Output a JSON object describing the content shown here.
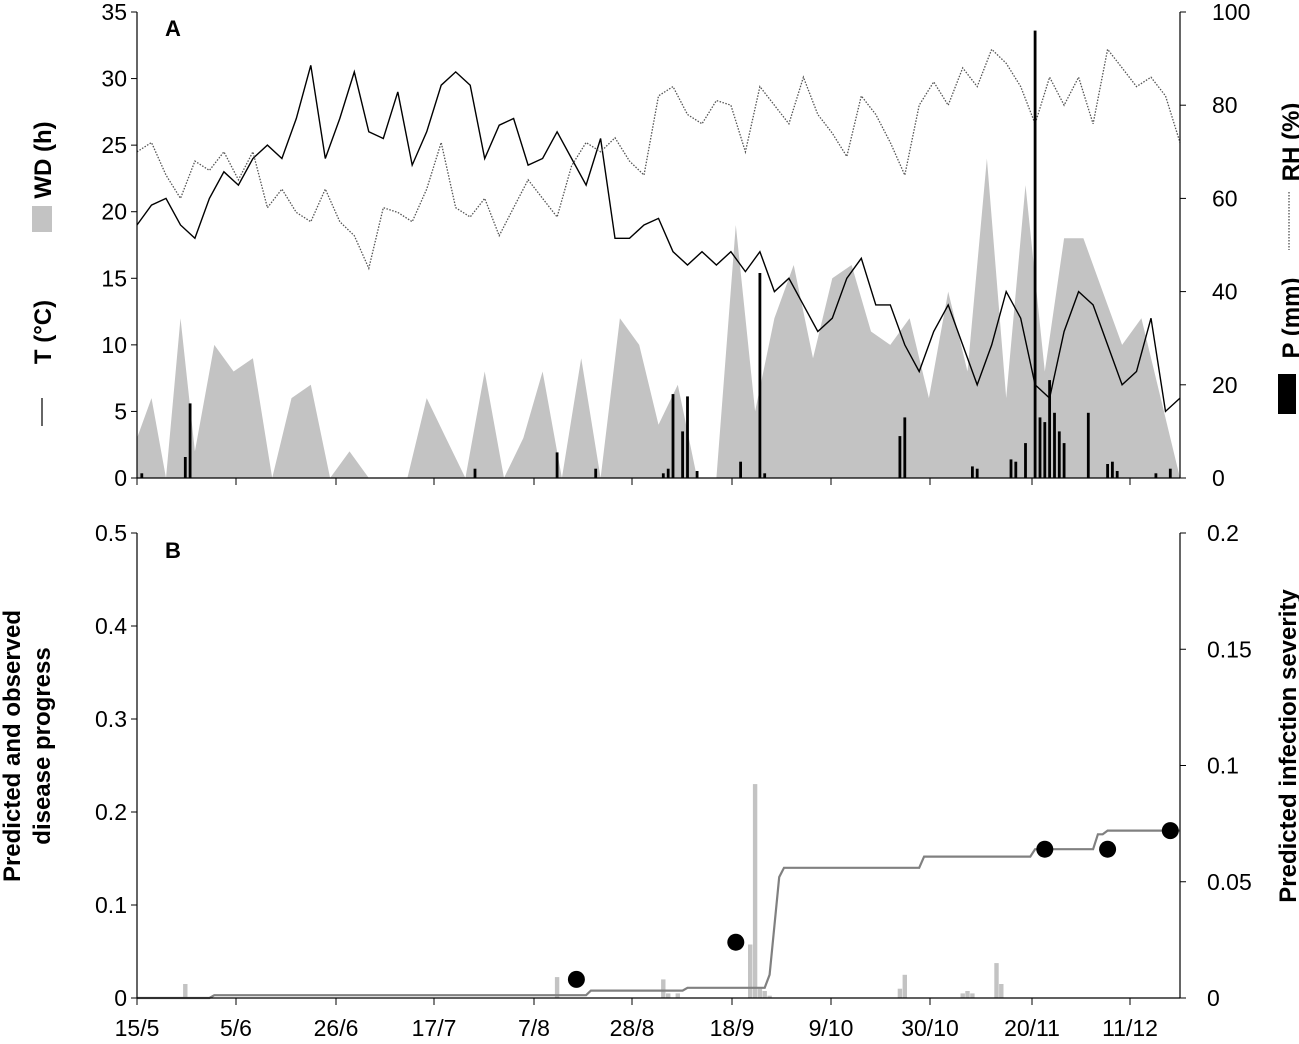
{
  "chart_data": [
    {
      "panel": "A",
      "type": "area",
      "panel_label": "A",
      "x_ticks": [
        "15/5",
        "5/6",
        "26/6",
        "17/7",
        "7/8",
        "28/8",
        "18/9",
        "9/10",
        "30/10",
        "20/11",
        "11/12"
      ],
      "left_axis": {
        "ylim": [
          0,
          35
        ],
        "ticks": [
          "0",
          "5",
          "10",
          "15",
          "20",
          "25",
          "30",
          "35"
        ]
      },
      "right_axis": {
        "ylim": [
          0,
          100
        ],
        "ticks": [
          "0",
          "20",
          "40",
          "60",
          "80",
          "100"
        ]
      },
      "left_titles": {
        "wd": "WD (h)",
        "t": "T (°C)"
      },
      "right_titles": {
        "rh": "RH (%)",
        "p": "P (mm)"
      },
      "series": [
        {
          "name": "WD (h)",
          "kind": "area",
          "axis": "left",
          "color": "#c3c3c3",
          "days": [
            0,
            3,
            6,
            9,
            12,
            16,
            20,
            24,
            28,
            32,
            36,
            40,
            44,
            48,
            52,
            56,
            60,
            64,
            68,
            72,
            76,
            80,
            84,
            88,
            92,
            96,
            100,
            104,
            108,
            112,
            116,
            120,
            124,
            128,
            132,
            136,
            140,
            144,
            148,
            152,
            156,
            160,
            164,
            168,
            172,
            176,
            180,
            184,
            188,
            192,
            196,
            200,
            204,
            208,
            212,
            216
          ],
          "values": [
            3,
            6,
            0,
            12,
            2,
            10,
            8,
            9,
            0,
            6,
            7,
            0,
            2,
            0,
            0,
            0,
            6,
            3,
            0,
            8,
            0,
            3,
            8,
            0,
            9,
            0,
            12,
            10,
            4,
            7,
            0,
            0,
            19,
            5,
            12,
            16,
            9,
            15,
            16,
            11,
            10,
            12,
            6,
            14,
            8,
            24,
            6,
            22,
            8,
            18,
            18,
            14,
            10,
            12,
            6,
            0
          ]
        },
        {
          "name": "T (°C)",
          "kind": "line",
          "axis": "left",
          "color": "#000000",
          "stroke": "solid",
          "days": [
            0,
            3,
            6,
            9,
            12,
            15,
            18,
            21,
            24,
            27,
            30,
            33,
            36,
            39,
            42,
            45,
            48,
            51,
            54,
            57,
            60,
            63,
            66,
            69,
            72,
            75,
            78,
            81,
            84,
            87,
            90,
            93,
            96,
            99,
            102,
            105,
            108,
            111,
            114,
            117,
            120,
            123,
            126,
            129,
            132,
            135,
            138,
            141,
            144,
            147,
            150,
            153,
            156,
            159,
            162,
            165,
            168,
            171,
            174,
            177,
            180,
            183,
            186,
            189,
            192,
            195,
            198,
            201,
            204,
            207,
            210,
            213,
            216
          ],
          "values": [
            19,
            20.5,
            21,
            19,
            18,
            21,
            23,
            22,
            24,
            25,
            24,
            27,
            31,
            24,
            27,
            30.5,
            26,
            25.5,
            29,
            23.5,
            26,
            29.5,
            30.5,
            29.5,
            24,
            26.5,
            27,
            23.5,
            24,
            26,
            24,
            22,
            25.5,
            18,
            18,
            19,
            19.5,
            17,
            16,
            17,
            16,
            17,
            15.5,
            17,
            14,
            15,
            13,
            11,
            12,
            15,
            16.5,
            13,
            13,
            10,
            8,
            11,
            13,
            10,
            7,
            10,
            14,
            12,
            7,
            6,
            11,
            14,
            13,
            10,
            7,
            8,
            12,
            5,
            6
          ]
        },
        {
          "name": "RH (%)",
          "kind": "line",
          "axis": "right",
          "color": "#555555",
          "stroke": "dotted",
          "days": [
            0,
            3,
            6,
            9,
            12,
            15,
            18,
            21,
            24,
            27,
            30,
            33,
            36,
            39,
            42,
            45,
            48,
            51,
            54,
            57,
            60,
            63,
            66,
            69,
            72,
            75,
            78,
            81,
            84,
            87,
            90,
            93,
            96,
            99,
            102,
            105,
            108,
            111,
            114,
            117,
            120,
            123,
            126,
            129,
            132,
            135,
            138,
            141,
            144,
            147,
            150,
            153,
            156,
            159,
            162,
            165,
            168,
            171,
            174,
            177,
            180,
            183,
            186,
            189,
            192,
            195,
            198,
            201,
            204,
            207,
            210,
            213,
            216
          ],
          "values": [
            70,
            72,
            65,
            60,
            68,
            66,
            70,
            64,
            70,
            58,
            62,
            57,
            55,
            62,
            55,
            52,
            45,
            58,
            57,
            55,
            62,
            72,
            58,
            56,
            60,
            52,
            58,
            64,
            60,
            56,
            67,
            72,
            70,
            73,
            68,
            65,
            82,
            84,
            78,
            76,
            81,
            80,
            70,
            84,
            80,
            76,
            86,
            78,
            74,
            69,
            82,
            78,
            72,
            65,
            80,
            85,
            80,
            88,
            84,
            92,
            89,
            84,
            76,
            86,
            80,
            86,
            76,
            92,
            88,
            84,
            86,
            82,
            72
          ]
        },
        {
          "name": "P (mm)",
          "kind": "bar",
          "axis": "right",
          "color": "#000000",
          "days": [
            1,
            10,
            11,
            70,
            87,
            95,
            109,
            110,
            111,
            113,
            114,
            116,
            125,
            129,
            130,
            158,
            159,
            173,
            174,
            181,
            182,
            184,
            186,
            187,
            188,
            189,
            190,
            191,
            192,
            197,
            201,
            202,
            203,
            211,
            214
          ],
          "values": [
            1,
            4.5,
            16,
            2,
            5.5,
            2,
            1,
            2,
            18,
            10,
            17.5,
            1.5,
            3.5,
            44,
            1,
            9,
            13,
            2.5,
            2,
            4,
            3.5,
            7.5,
            96,
            13,
            12,
            21,
            14,
            10,
            7.5,
            14,
            3,
            3.5,
            1.5,
            1,
            2
          ]
        }
      ]
    },
    {
      "panel": "B",
      "type": "line",
      "panel_label": "B",
      "x_ticks": [
        "15/5",
        "5/6",
        "26/6",
        "17/7",
        "7/8",
        "28/8",
        "18/9",
        "9/10",
        "30/10",
        "20/11",
        "11/12"
      ],
      "ylabel": "Predicted and observed disease progress",
      "y2label": "Predicted infection severity",
      "left_axis": {
        "ylim": [
          0,
          0.5
        ],
        "ticks": [
          "0",
          "0.1",
          "0.2",
          "0.3",
          "0.4",
          "0.5"
        ]
      },
      "right_axis": {
        "ylim": [
          0,
          0.2
        ],
        "ticks": [
          "0",
          "0.05",
          "0.1",
          "0.15",
          "0.2"
        ]
      },
      "series": [
        {
          "name": "Predicted disease progress",
          "kind": "line",
          "axis": "left",
          "color": "#808080",
          "x": [
            0,
            15,
            16,
            93,
            94,
            113,
            114,
            130,
            131,
            133,
            134,
            162,
            163,
            185,
            186,
            198,
            199,
            200,
            201,
            216
          ],
          "y": [
            0,
            0,
            0.003,
            0.003,
            0.008,
            0.008,
            0.011,
            0.011,
            0.025,
            0.13,
            0.14,
            0.14,
            0.152,
            0.152,
            0.16,
            0.16,
            0.176,
            0.176,
            0.18,
            0.18
          ]
        },
        {
          "name": "Observed disease progress",
          "kind": "scatter",
          "axis": "left",
          "color": "#000000",
          "x": [
            91,
            124,
            188,
            201,
            214
          ],
          "y": [
            0.02,
            0.06,
            0.16,
            0.16,
            0.18
          ]
        },
        {
          "name": "Predicted infection severity",
          "kind": "bar",
          "axis": "right",
          "color": "#c3c3c3",
          "x": [
            10,
            87,
            109,
            110,
            112,
            127,
            128,
            129,
            130,
            131,
            158,
            159,
            171,
            172,
            173,
            178,
            179
          ],
          "values": [
            0.006,
            0.009,
            0.008,
            0.002,
            0.002,
            0.023,
            0.092,
            0.004,
            0.003,
            0.001,
            0.004,
            0.01,
            0.002,
            0.003,
            0.002,
            0.015,
            0.006
          ]
        }
      ]
    }
  ]
}
